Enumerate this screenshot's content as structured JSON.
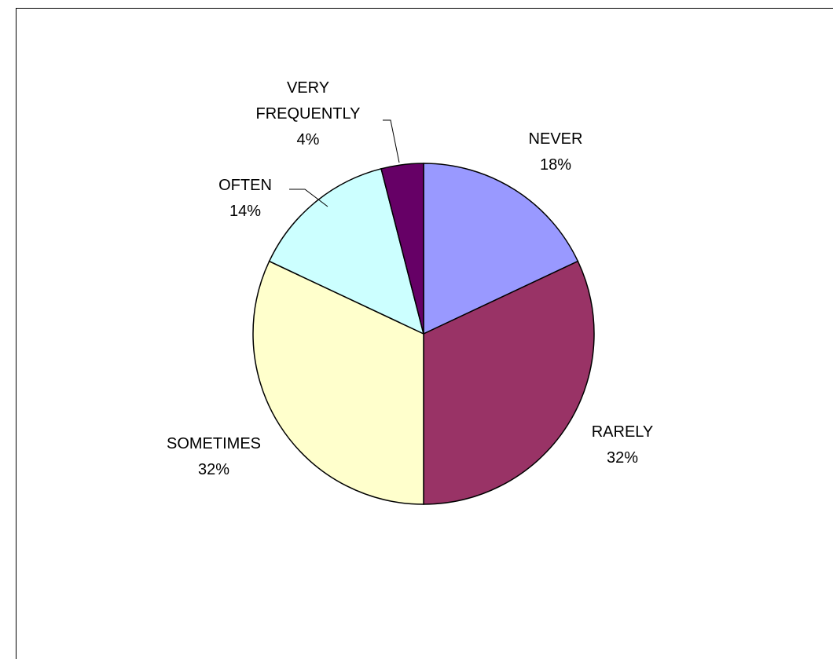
{
  "chart_data": {
    "type": "pie",
    "start_angle_deg": 0,
    "direction": "clockwise",
    "slices": [
      {
        "label": "NEVER",
        "percent_label": "18%",
        "value": 18,
        "color": "#9999FF"
      },
      {
        "label": "RARELY",
        "percent_label": "32%",
        "value": 32,
        "color": "#993366"
      },
      {
        "label": "SOMETIMES",
        "percent_label": "32%",
        "value": 32,
        "color": "#FFFFCC"
      },
      {
        "label": "OFTEN",
        "percent_label": "14%",
        "value": 14,
        "color": "#CCFFFF"
      },
      {
        "label": "VERY FREQUENTLY",
        "label_lines": [
          "VERY",
          "FREQUENTLY"
        ],
        "percent_label": "4%",
        "value": 4,
        "color": "#660066"
      }
    ]
  }
}
